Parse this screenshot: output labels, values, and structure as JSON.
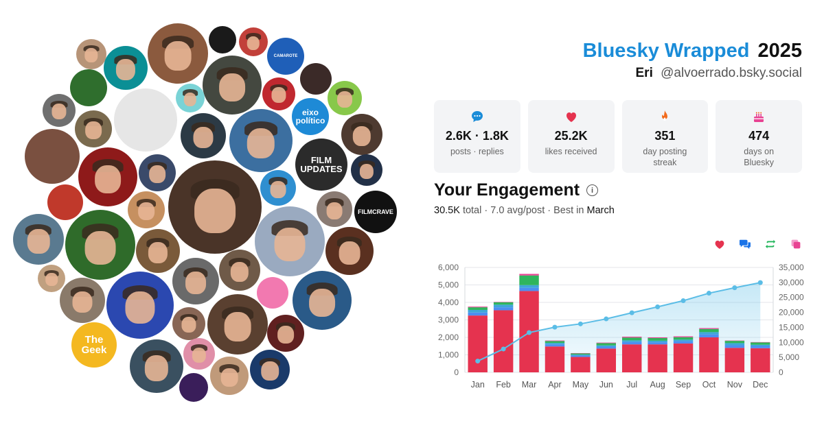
{
  "header": {
    "brand": "Bluesky Wrapped",
    "year": "2025",
    "display_name": "Eri",
    "handle": "@alvoerrado.bsky.social"
  },
  "stats": [
    {
      "icon": "chat-bubble-icon",
      "value": "2.6K · 1.8K",
      "label": "posts · replies",
      "color": "#1a8cd8"
    },
    {
      "icon": "heart-icon",
      "value": "25.2K",
      "label": "likes received",
      "color": "#e5334f"
    },
    {
      "icon": "flame-icon",
      "value": "351",
      "label": "day posting streak",
      "color": "#f26b1d"
    },
    {
      "icon": "cake-icon",
      "value": "474",
      "label": "days on Bluesky",
      "color": "#e84393"
    }
  ],
  "engagement": {
    "title": "Your Engagement",
    "total": "30.5K",
    "total_word": "total",
    "avg": "7.0 avg/post",
    "best_prefix": "Best in",
    "best_month": "March"
  },
  "legend_icons": [
    {
      "name": "likes-legend-heart-icon",
      "color": "#e5334f"
    },
    {
      "name": "replies-legend-bubbles-icon",
      "color": "#1a73e8"
    },
    {
      "name": "reposts-legend-repost-icon",
      "color": "#20b55a"
    },
    {
      "name": "quotes-legend-quote-icon",
      "color": "#e84393"
    }
  ],
  "collage": {
    "badge_texts": [
      "eixo político",
      "FILM UPDATES",
      "FILMCRAVE",
      "The Geek",
      "CAMAROTE"
    ]
  },
  "chart_data": {
    "type": "bar",
    "categories": [
      "Jan",
      "Feb",
      "Mar",
      "Apr",
      "May",
      "Jun",
      "Jul",
      "Aug",
      "Sep",
      "Oct",
      "Nov",
      "Dec"
    ],
    "series": [
      {
        "values": [
          3250,
          3550,
          4650,
          1480,
          880,
          1360,
          1600,
          1600,
          1650,
          2000,
          1400,
          1380
        ],
        "color": "#e5334f"
      },
      {
        "values": [
          170,
          170,
          180,
          120,
          80,
          110,
          130,
          120,
          130,
          170,
          150,
          130
        ],
        "color": "#4d8ef0"
      },
      {
        "values": [
          150,
          150,
          160,
          80,
          50,
          70,
          100,
          90,
          90,
          130,
          120,
          70
        ],
        "color": "#3fa6d8"
      },
      {
        "values": [
          150,
          140,
          550,
          110,
          70,
          130,
          160,
          150,
          140,
          180,
          130,
          130
        ],
        "color": "#2fb55c"
      },
      {
        "values": [
          40,
          20,
          90,
          30,
          20,
          30,
          50,
          40,
          50,
          50,
          20,
          20
        ],
        "color": "#e84393"
      }
    ],
    "cumulative": {
      "values": [
        3760,
        7790,
        13260,
        15070,
        16170,
        17830,
        19870,
        21840,
        23900,
        26410,
        28230,
        29940
      ],
      "color": "#5bbde6"
    },
    "ylim_left": [
      0,
      6000
    ],
    "yticks_left": [
      "0",
      "1,000",
      "2,000",
      "3,000",
      "4,000",
      "5,000",
      "6,000"
    ],
    "ylim_right": [
      0,
      35000
    ],
    "yticks_right": [
      "0",
      "5,000",
      "10,000",
      "15,000",
      "20,000",
      "25,000",
      "30,000",
      "35,000"
    ],
    "grid": true
  }
}
